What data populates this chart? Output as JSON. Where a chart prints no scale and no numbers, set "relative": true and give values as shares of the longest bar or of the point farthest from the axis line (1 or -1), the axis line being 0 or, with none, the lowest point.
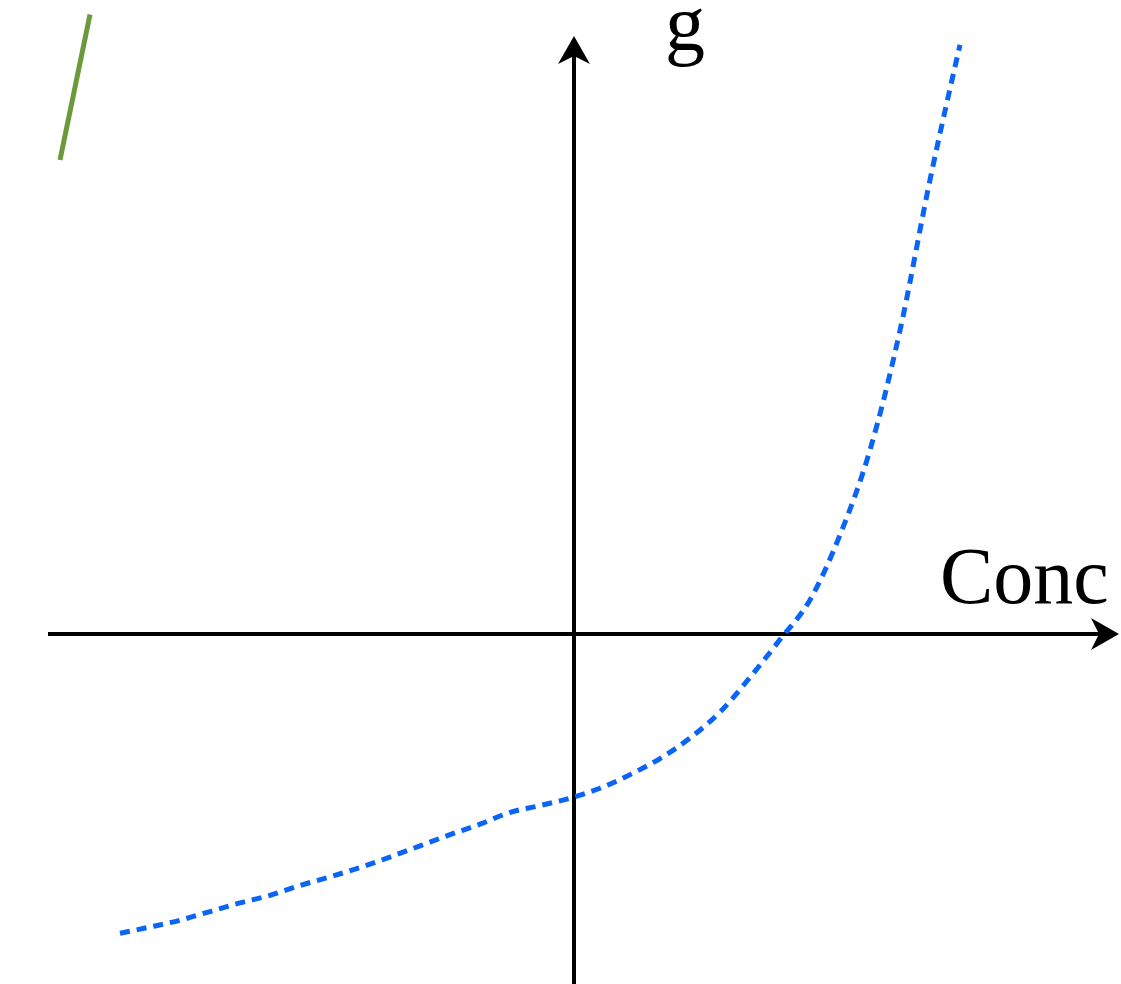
{
  "chart_data": {
    "type": "line",
    "relative": true,
    "xlabel": "Conc",
    "ylabel": "g",
    "categories": [
      null,
      null,
      null,
      null,
      null,
      null,
      null,
      null,
      null,
      null,
      null,
      null,
      null,
      null,
      null,
      null,
      null,
      null,
      null,
      null,
      null,
      null,
      null,
      null,
      null,
      null,
      null,
      null,
      null,
      null,
      null
    ],
    "series": [
      {
        "color": "#6a9a3a",
        "line_style": "solid",
        "values": [
          0.765,
          1,
          null,
          null,
          null,
          null,
          null,
          null,
          null,
          null,
          null,
          null,
          null,
          null,
          null,
          null,
          null,
          null,
          null,
          null,
          null,
          null,
          null,
          null,
          null,
          null,
          null,
          null,
          null,
          null,
          null
        ]
      },
      {
        "color": "#0a64f5",
        "line_style": "dotted",
        "values": [
          null,
          null,
          -0.483,
          -0.473,
          -0.462,
          -0.448,
          -0.434,
          -0.422,
          -0.406,
          -0.392,
          -0.377,
          -0.36,
          -0.342,
          -0.324,
          -0.307,
          -0.288,
          -0.277,
          -0.265,
          -0.249,
          -0.227,
          -0.201,
          -0.168,
          -0.126,
          -0.07,
          -0.009,
          0.055,
          0.16,
          0.297,
          0.49,
          0.733,
          0.951
        ]
      }
    ]
  }
}
